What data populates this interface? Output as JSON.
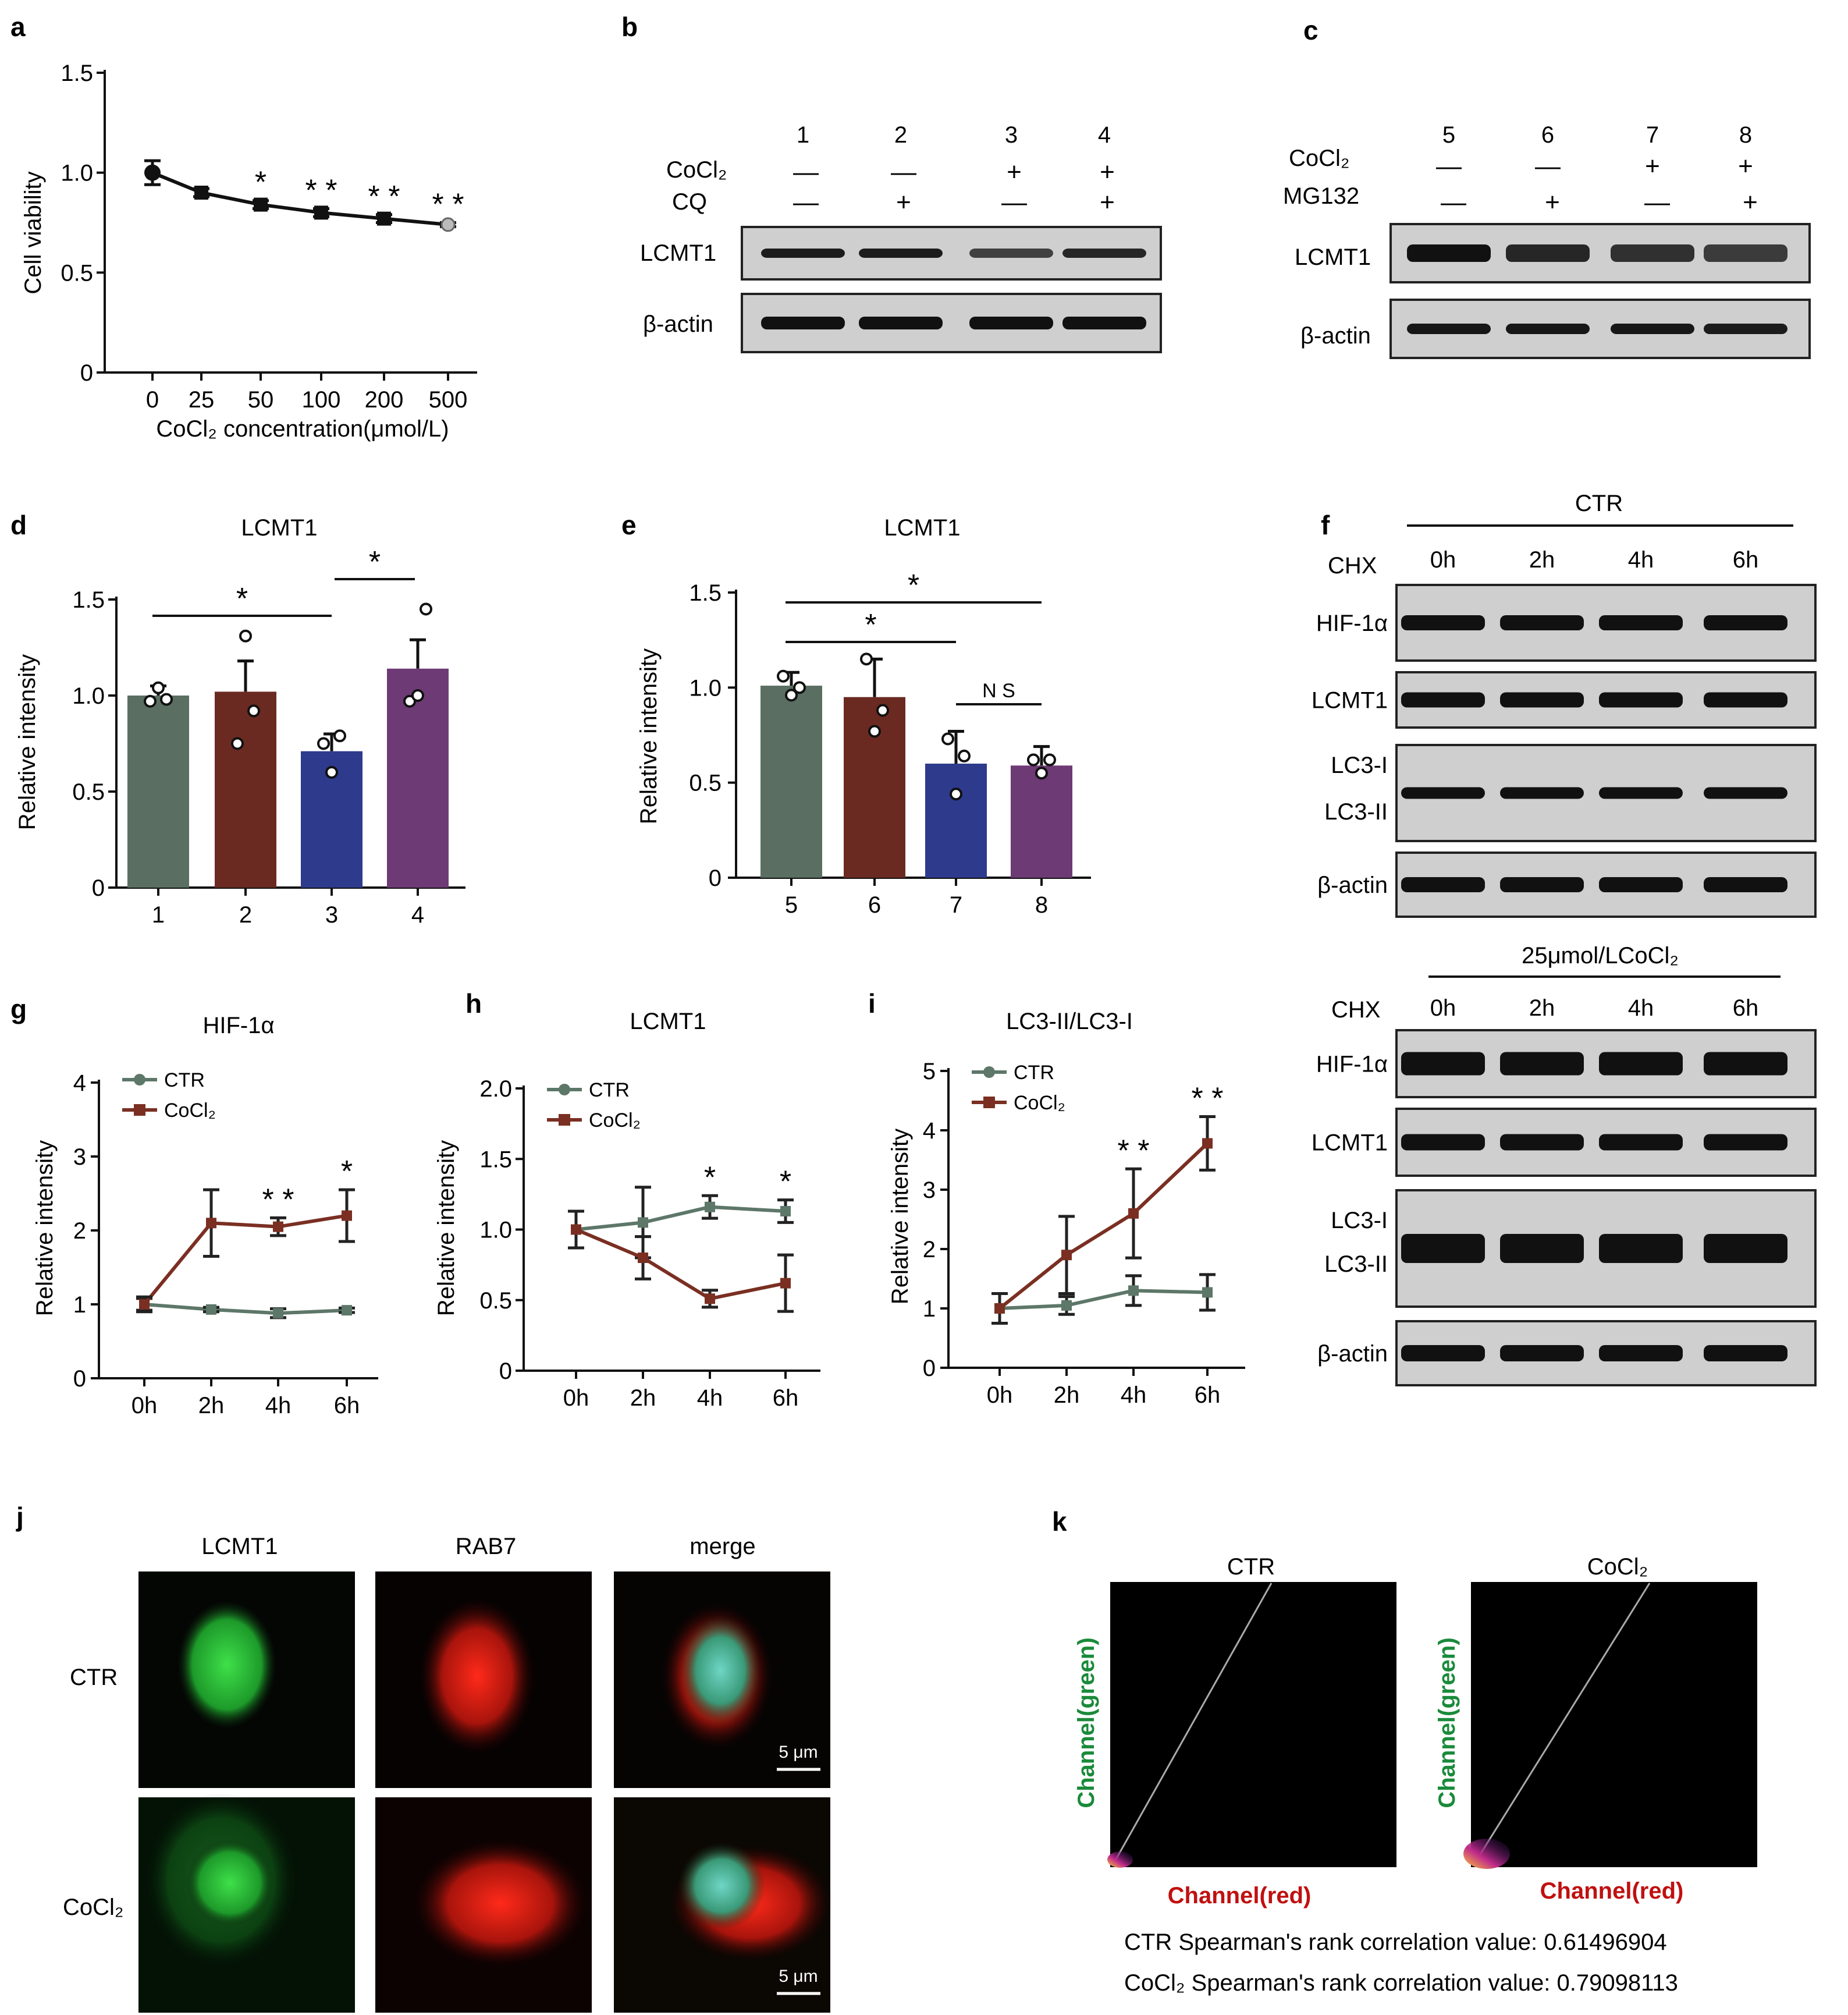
{
  "colors": {
    "ctr": "#5d7769",
    "cocl2": "#7a2f22",
    "blue": "#2e3a8c",
    "purple": "#6e3a75",
    "g1": "#5a6f62",
    "g2": "#6b2a21"
  },
  "panel_letters": [
    "a",
    "b",
    "c",
    "d",
    "e",
    "f",
    "g",
    "h",
    "i",
    "j",
    "k"
  ],
  "panel_b": {
    "lanes": [
      "1",
      "2",
      "3",
      "4"
    ],
    "row1_label": "CoCl₂",
    "row1": [
      "—",
      "—",
      "+",
      "+"
    ],
    "row2_label": "CQ",
    "row2": [
      "—",
      "+",
      "—",
      "+"
    ],
    "blots": [
      "LCMT1",
      "β-actin"
    ],
    "band_intensity": [
      [
        0.9,
        0.9,
        0.55,
        0.8
      ],
      [
        1,
        1,
        1,
        1
      ]
    ]
  },
  "panel_c": {
    "lanes": [
      "5",
      "6",
      "7",
      "8"
    ],
    "row1_label": "CoCl₂",
    "row1": [
      "—",
      "—",
      "+",
      "+"
    ],
    "row2_label": "MG132",
    "row2": [
      "—",
      "+",
      "—",
      "+"
    ],
    "blots": [
      "LCMT1",
      "β-actin"
    ],
    "band_intensity": [
      [
        1,
        0.8,
        0.7,
        0.6
      ],
      [
        0.95,
        0.95,
        0.95,
        0.9
      ]
    ]
  },
  "panel_f": {
    "header_ctr": "CTR",
    "header_cocl2": "25μmol/LCoCl₂",
    "chx_label": "CHX",
    "times": [
      "0h",
      "2h",
      "4h",
      "6h"
    ],
    "ctr_blots": [
      {
        "name": "HIF-1α"
      },
      {
        "name": "LCMT1"
      },
      {
        "name": "LC3-I",
        "name2": "LC3-II"
      },
      {
        "name": "β-actin"
      }
    ],
    "cocl2_blots": [
      {
        "name": "HIF-1α"
      },
      {
        "name": "LCMT1"
      },
      {
        "name": "LC3-I",
        "name2": "LC3-II"
      },
      {
        "name": "β-actin"
      }
    ]
  },
  "panel_j": {
    "cols": [
      "LCMT1",
      "RAB7",
      "merge"
    ],
    "rows": [
      "CTR",
      "CoCl₂"
    ],
    "scale": "5 μm"
  },
  "panel_k": {
    "plots": [
      "CTR",
      "CoCl₂"
    ],
    "ylabel": "Channel(green)",
    "xlabel": "Channel(red)",
    "caption1": "CTR Spearman's rank correlation value: 0.61496904",
    "caption2": "CoCl₂ Spearman's rank correlation value: 0.79098113"
  },
  "chart_data": [
    {
      "id": "a",
      "type": "line",
      "title": "",
      "xlabel": "CoCl₂ concentration(μmol/L)",
      "ylabel": "Cell viability",
      "categories": [
        "0",
        "25",
        "50",
        "100",
        "200",
        "500"
      ],
      "series": [
        {
          "values": [
            1.0,
            0.9,
            0.84,
            0.8,
            0.77,
            0.74
          ],
          "err": [
            0.06,
            0.02,
            0.02,
            0.02,
            0.02,
            0.01
          ]
        }
      ],
      "yticks": [
        "0",
        "0.5",
        "1.0",
        "1.5"
      ],
      "ylim": [
        0,
        1.5
      ],
      "sig": [
        "",
        "",
        "*",
        "* *",
        "* *",
        "* *"
      ]
    },
    {
      "id": "d",
      "type": "bar",
      "title": "LCMT1",
      "ylabel": "Relative intensity",
      "categories": [
        "1",
        "2",
        "3",
        "4"
      ],
      "values": [
        1.0,
        1.02,
        0.71,
        1.14
      ],
      "err": [
        0.05,
        0.16,
        0.09,
        0.15
      ],
      "points": [
        [
          0.97,
          1.04,
          0.98
        ],
        [
          0.75,
          1.31,
          0.92
        ],
        [
          0.75,
          0.6,
          0.79
        ],
        [
          0.97,
          1.0,
          1.45
        ]
      ],
      "yticks": [
        "0",
        "0.5",
        "1.0",
        "1.5"
      ],
      "ylim": [
        0,
        1.5
      ],
      "brackets": [
        {
          "from": 0,
          "to": 2,
          "label": "*"
        },
        {
          "from": 2,
          "to": 3,
          "label": "*"
        }
      ]
    },
    {
      "id": "e",
      "type": "bar",
      "title": "LCMT1",
      "ylabel": "Relative intensity",
      "categories": [
        "5",
        "6",
        "7",
        "8"
      ],
      "values": [
        1.01,
        0.95,
        0.6,
        0.59
      ],
      "err": [
        0.07,
        0.2,
        0.17,
        0.1
      ],
      "points": [
        [
          1.06,
          0.96,
          1.0
        ],
        [
          1.15,
          0.77,
          0.88
        ],
        [
          0.73,
          0.44,
          0.64
        ],
        [
          0.62,
          0.55,
          0.62
        ]
      ],
      "yticks": [
        "0",
        "0.5",
        "1.0",
        "1.5"
      ],
      "ylim": [
        0,
        1.5
      ],
      "brackets": [
        {
          "from": 0,
          "to": 3,
          "label": "*"
        },
        {
          "from": 0,
          "to": 2,
          "label": "*"
        },
        {
          "from": 2,
          "to": 3,
          "label": "N S"
        }
      ]
    },
    {
      "id": "g",
      "type": "line",
      "title": "HIF-1α",
      "ylabel": "Relative intensity",
      "categories": [
        "0h",
        "2h",
        "4h",
        "6h"
      ],
      "series": [
        {
          "name": "CTR",
          "values": [
            1.0,
            0.93,
            0.88,
            0.92
          ],
          "err": [
            0.08,
            0.03,
            0.06,
            0.03
          ]
        },
        {
          "name": "CoCl₂",
          "values": [
            1.0,
            2.1,
            2.05,
            2.2
          ],
          "err": [
            0.1,
            0.45,
            0.12,
            0.35
          ]
        }
      ],
      "yticks": [
        "0",
        "1",
        "2",
        "3",
        "4"
      ],
      "ylim": [
        0,
        4
      ],
      "sig": [
        "",
        "",
        "* *",
        "*"
      ]
    },
    {
      "id": "h",
      "type": "line",
      "title": "LCMT1",
      "ylabel": "Relative intensity",
      "categories": [
        "0h",
        "2h",
        "4h",
        "6h"
      ],
      "series": [
        {
          "name": "CTR",
          "values": [
            1.0,
            1.05,
            1.16,
            1.13
          ],
          "err": [
            0.13,
            0.25,
            0.08,
            0.08
          ]
        },
        {
          "name": "CoCl₂",
          "values": [
            1.0,
            0.8,
            0.51,
            0.62
          ],
          "err": [
            0.13,
            0.15,
            0.06,
            0.2
          ]
        }
      ],
      "yticks": [
        "0",
        "0.5",
        "1.0",
        "1.5",
        "2.0"
      ],
      "ylim": [
        0,
        2
      ],
      "sig": [
        "",
        "",
        "*",
        "*"
      ]
    },
    {
      "id": "i",
      "type": "line",
      "title": "LC3-II/LC3-I",
      "ylabel": "Relative intensity",
      "categories": [
        "0h",
        "2h",
        "4h",
        "6h"
      ],
      "series": [
        {
          "name": "CTR",
          "values": [
            1.0,
            1.05,
            1.3,
            1.27
          ],
          "err": [
            0.25,
            0.15,
            0.25,
            0.3
          ]
        },
        {
          "name": "CoCl₂",
          "values": [
            1.0,
            1.9,
            2.6,
            3.78
          ],
          "err": [
            0.25,
            0.65,
            0.75,
            0.45
          ]
        }
      ],
      "yticks": [
        "0",
        "1",
        "2",
        "3",
        "4",
        "5"
      ],
      "ylim": [
        0,
        5
      ],
      "sig": [
        "",
        "",
        "* *",
        "* *"
      ]
    }
  ]
}
